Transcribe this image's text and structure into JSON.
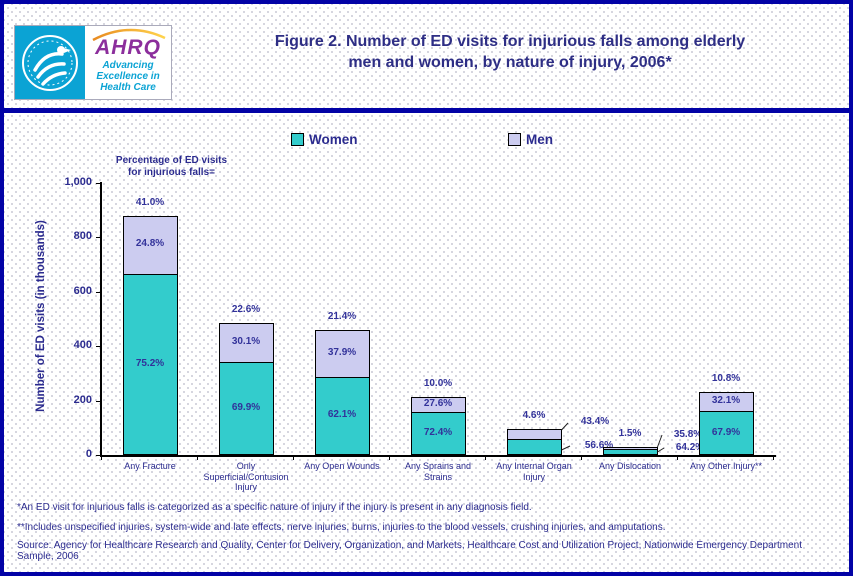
{
  "header": {
    "logo": {
      "acronym": "AHRQ",
      "tagline": "Advancing\nExcellence in\nHealth Care"
    },
    "title": "Figure 2. Number of ED visits for injurious falls among elderly\nmen and women, by nature of injury, 2006*"
  },
  "legend": {
    "items": [
      {
        "label": "Women",
        "color": "#33cccc"
      },
      {
        "label": "Men",
        "color": "#ccccf0"
      }
    ]
  },
  "annotation": "Percentage of ED visits\nfor injurious falls=",
  "y_axis": {
    "label": "Number of ED visits (in thousands)"
  },
  "chart_data": {
    "type": "bar",
    "stacked": true,
    "title": "Figure 2. Number of ED visits for injurious falls among elderly men and women, by nature of injury, 2006*",
    "xlabel": "",
    "ylabel": "Number of ED visits (in thousands)",
    "ylim": [
      0,
      1000
    ],
    "yticks": [
      0,
      200,
      400,
      600,
      800,
      1000
    ],
    "ytick_labels": [
      "0",
      "200",
      "400",
      "600",
      "800",
      "1,000"
    ],
    "grid": false,
    "legend_position": "top-center",
    "categories": [
      "Any Fracture",
      "Only\nSuperficial/Contusion\nInjury",
      "Any Open Wounds",
      "Any Sprains and\nStrains",
      "Any Internal Organ\nInjury",
      "Any Dislocation",
      "Any Other Injury**"
    ],
    "series": [
      {
        "name": "Women",
        "color": "#33cccc",
        "values": [
          662,
          339,
          284,
          153,
          54,
          19,
          158
        ],
        "pct_labels": [
          "75.2%",
          "69.9%",
          "62.1%",
          "72.4%",
          "56.6%",
          "64.2%",
          "67.9%"
        ]
      },
      {
        "name": "Men",
        "color": "#ccccf0",
        "values": [
          218,
          146,
          174,
          59,
          41,
          11,
          75
        ],
        "pct_labels": [
          "24.8%",
          "30.1%",
          "37.9%",
          "27.6%",
          "43.4%",
          "35.8%",
          "32.1%"
        ]
      }
    ],
    "totals": [
      880,
      485,
      458,
      212,
      95,
      30,
      233
    ],
    "total_pct_labels": [
      "41.0%",
      "22.6%",
      "21.4%",
      "10.0%",
      "4.6%",
      "1.5%",
      "10.8%"
    ],
    "callout_categories": [
      4,
      5
    ]
  },
  "footnotes": [
    "*An ED visit for injurious falls is categorized as a specific nature of injury if the injury is present in any diagnosis field.",
    "**Includes unspecified injuries, system-wide and late effects, nerve injuries, burns, injuries to the blood vessels, crushing injuries, and amputations."
  ],
  "source": "Source: Agency for Healthcare Research and Quality, Center for Delivery, Organization, and Markets, Healthcare Cost and Utilization Project, Nationwide Emergency Department Sample, 2006"
}
